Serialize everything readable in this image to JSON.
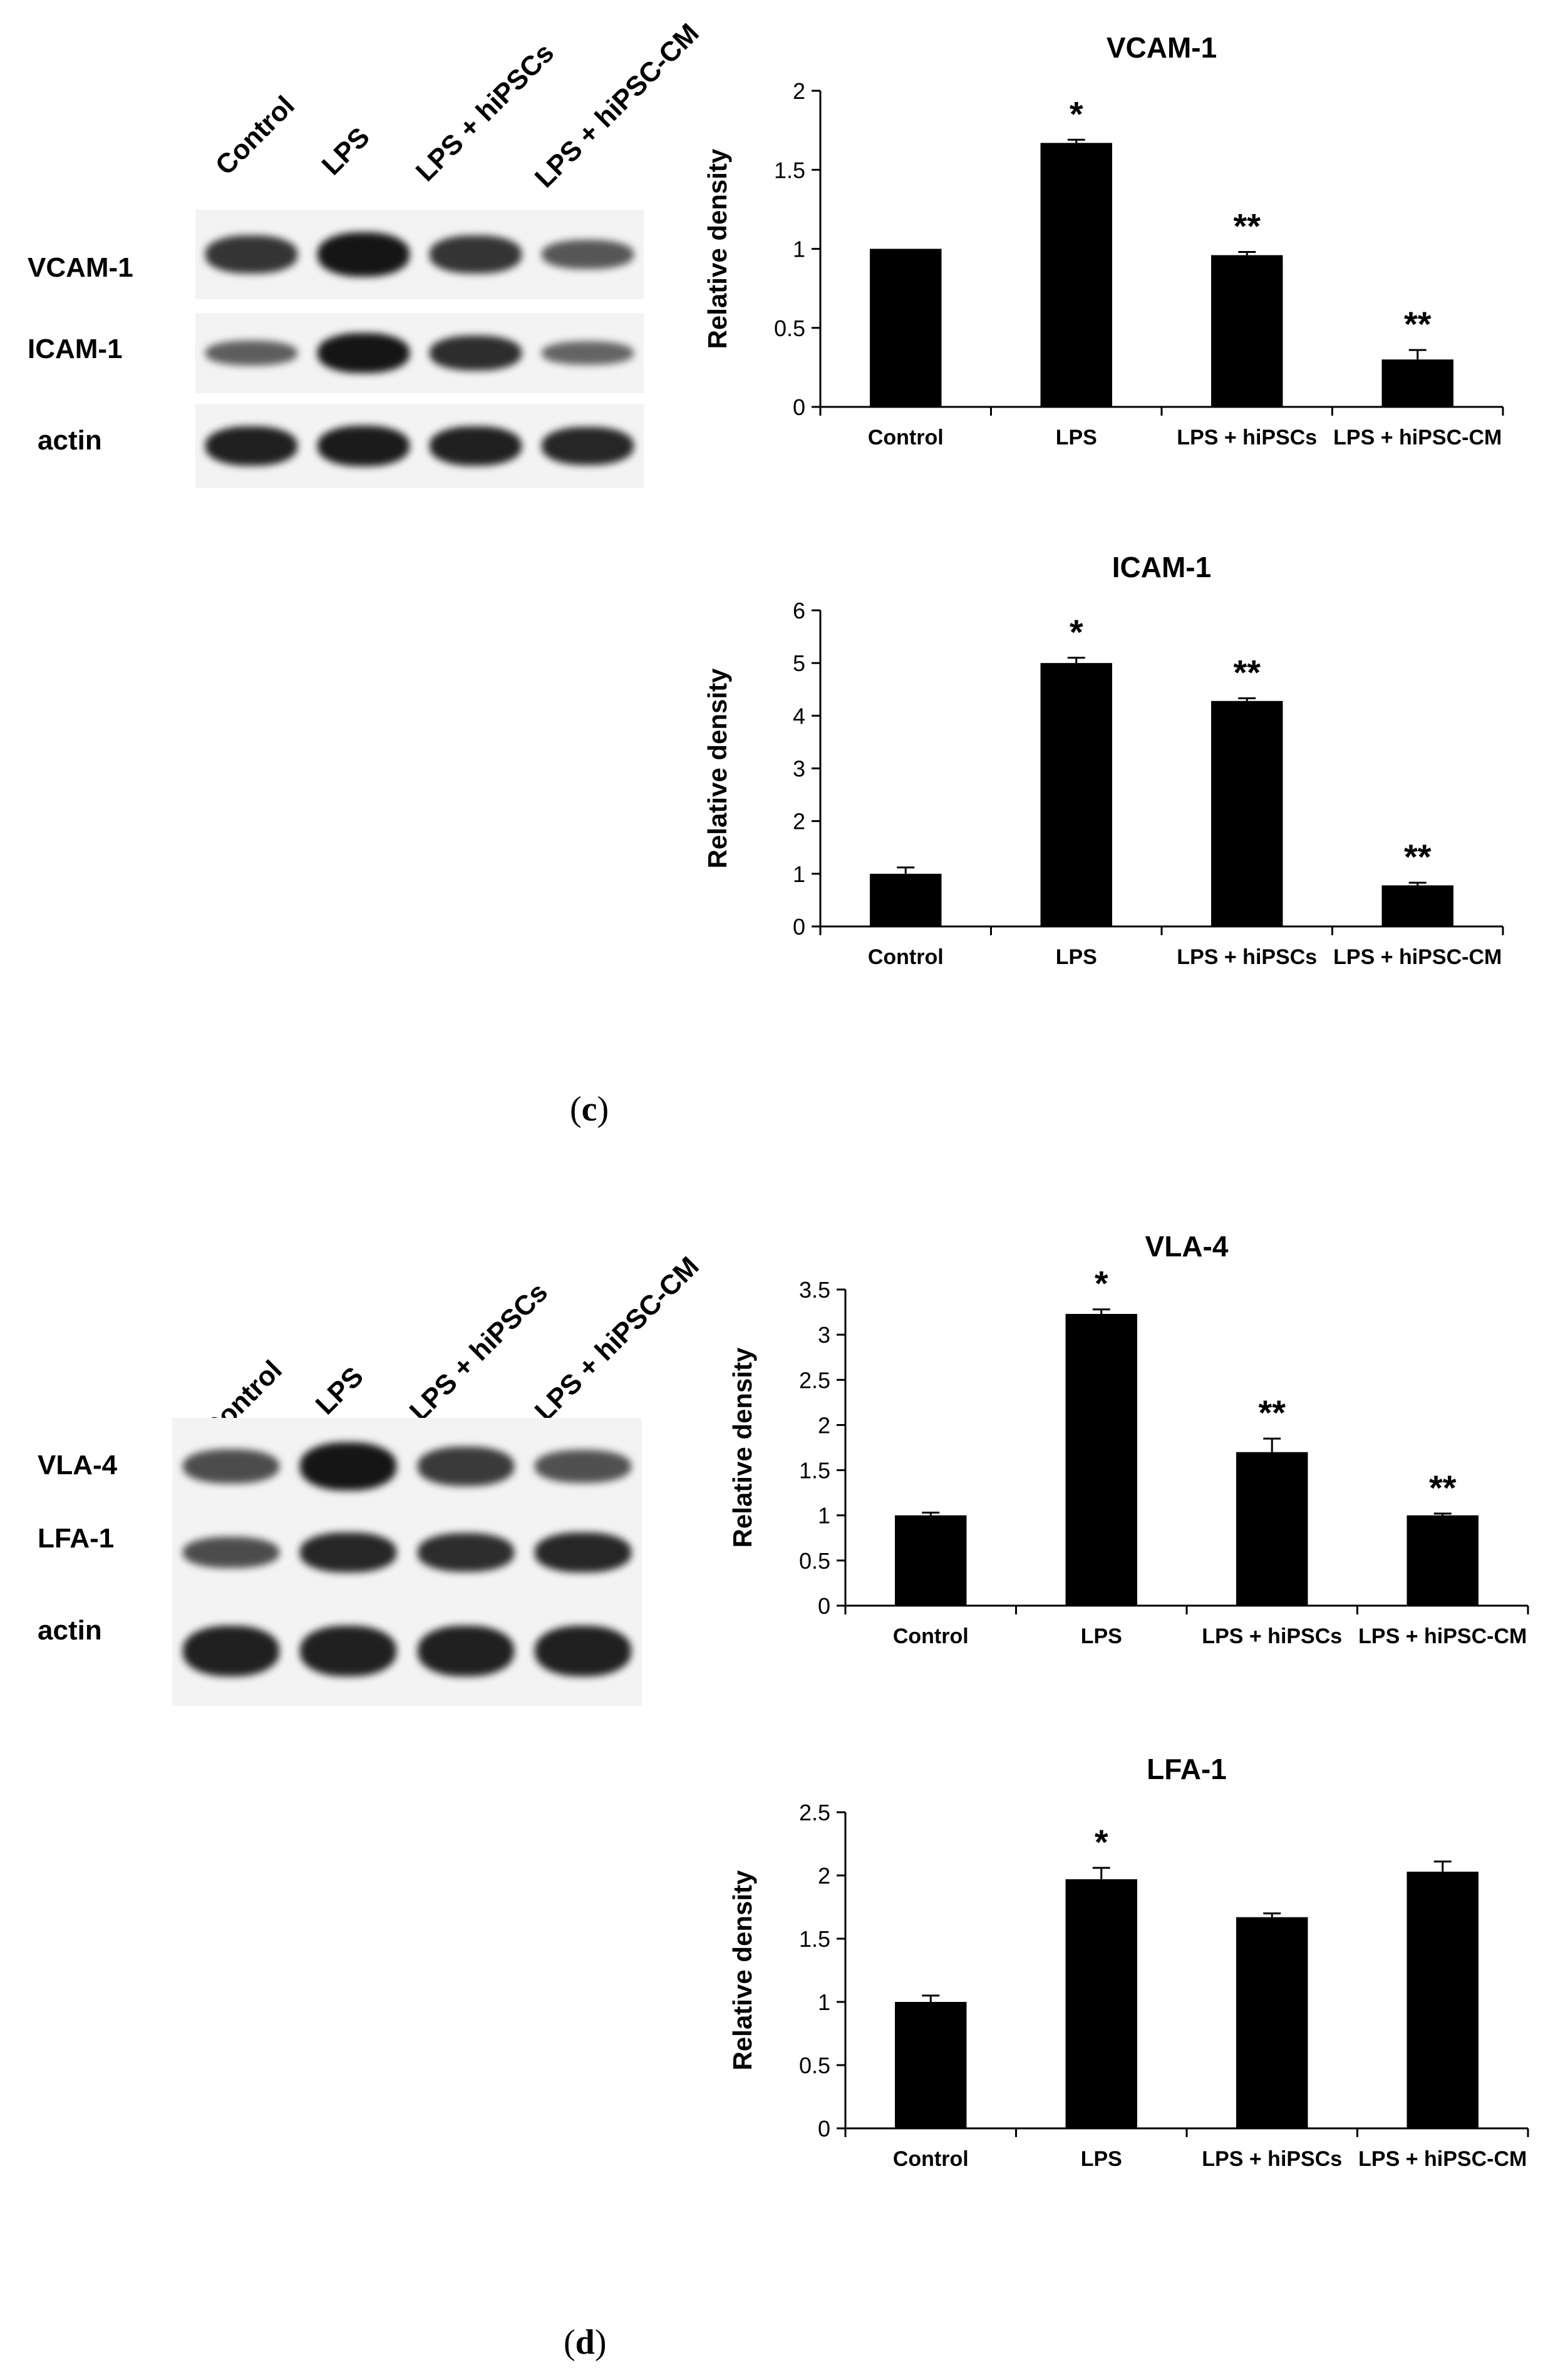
{
  "panels": [
    {
      "letter": "c",
      "blot": {
        "lanes": [
          "Control",
          "LPS",
          "LPS + hiPSCs",
          "LPS + hiPSC-CM"
        ],
        "rows": [
          {
            "label": "VCAM-1",
            "intensity": [
              0.75,
              1.0,
              0.75,
              0.45
            ]
          },
          {
            "label": "ICAM-1",
            "intensity": [
              0.4,
              1.0,
              0.8,
              0.35
            ]
          },
          {
            "label": "actin",
            "intensity": [
              0.9,
              0.95,
              0.9,
              0.85
            ]
          }
        ]
      },
      "charts": [
        {
          "type": "bar",
          "title": "VCAM-1",
          "ylabel": "Relative density",
          "categories": [
            "Control",
            "LPS",
            "LPS + hiPSCs",
            "LPS + hiPSC-CM"
          ],
          "values": [
            1.0,
            1.67,
            0.96,
            0.3
          ],
          "errors": [
            0,
            0.02,
            0.02,
            0.06
          ],
          "annotations": [
            "",
            "*",
            "**",
            "**"
          ],
          "ylim": [
            0,
            2
          ],
          "yticks": [
            "0",
            "0.5",
            "1",
            "1.5",
            "2"
          ]
        },
        {
          "type": "bar",
          "title": "ICAM-1",
          "ylabel": "Relative density",
          "categories": [
            "Control",
            "LPS",
            "LPS + hiPSCs",
            "LPS + hiPSC-CM"
          ],
          "values": [
            1.0,
            5.0,
            4.28,
            0.78
          ],
          "errors": [
            0.12,
            0.1,
            0.05,
            0.05
          ],
          "annotations": [
            "",
            "*",
            "**",
            "**"
          ],
          "ylim": [
            0,
            6
          ],
          "yticks": [
            "0",
            "1",
            "2",
            "3",
            "4",
            "5",
            "6"
          ]
        }
      ]
    },
    {
      "letter": "d",
      "blot": {
        "lanes": [
          "Control",
          "LPS",
          "LPS + hiPSCs",
          "LPS + hiPSC-CM"
        ],
        "rows": [
          {
            "label": "VLA-4",
            "intensity": [
              0.55,
              1.0,
              0.7,
              0.5
            ]
          },
          {
            "label": "LFA-1",
            "intensity": [
              0.55,
              0.85,
              0.8,
              0.85
            ]
          },
          {
            "label": "actin",
            "intensity": [
              0.9,
              0.9,
              0.9,
              0.9
            ]
          }
        ]
      },
      "charts": [
        {
          "type": "bar",
          "title": "VLA-4",
          "ylabel": "Relative density",
          "categories": [
            "Control",
            "LPS",
            "LPS + hiPSCs",
            "LPS + hiPSC-CM"
          ],
          "values": [
            1.0,
            3.23,
            1.7,
            1.0
          ],
          "errors": [
            0.03,
            0.05,
            0.15,
            0.02
          ],
          "annotations": [
            "",
            "*",
            "**",
            "**"
          ],
          "ylim": [
            0,
            3.5
          ],
          "yticks": [
            "0",
            "0.5",
            "1",
            "1.5",
            "2",
            "2.5",
            "3",
            "3.5"
          ]
        },
        {
          "type": "bar",
          "title": "LFA-1",
          "ylabel": "Relative density",
          "categories": [
            "Control",
            "LPS",
            "LPS + hiPSCs",
            "LPS + hiPSC-CM"
          ],
          "values": [
            1.0,
            1.97,
            1.67,
            2.03
          ],
          "errors": [
            0.05,
            0.09,
            0.03,
            0.08
          ],
          "annotations": [
            "",
            "*",
            "",
            ""
          ],
          "ylim": [
            0,
            2.5
          ],
          "yticks": [
            "0",
            "0.5",
            "1",
            "1.5",
            "2",
            "2.5"
          ]
        }
      ]
    }
  ],
  "chart_data": [
    {
      "type": "bar",
      "title": "VCAM-1",
      "ylabel": "Relative density",
      "categories": [
        "Control",
        "LPS",
        "LPS + hiPSCs",
        "LPS + hiPSC-CM"
      ],
      "values": [
        1.0,
        1.67,
        0.96,
        0.3
      ],
      "errors": [
        0,
        0.02,
        0.02,
        0.06
      ],
      "annotations": [
        "",
        "*",
        "**",
        "**"
      ],
      "ylim": [
        0,
        2
      ]
    },
    {
      "type": "bar",
      "title": "ICAM-1",
      "ylabel": "Relative density",
      "categories": [
        "Control",
        "LPS",
        "LPS + hiPSCs",
        "LPS + hiPSC-CM"
      ],
      "values": [
        1.0,
        5.0,
        4.28,
        0.78
      ],
      "errors": [
        0.12,
        0.1,
        0.05,
        0.05
      ],
      "annotations": [
        "",
        "*",
        "**",
        "**"
      ],
      "ylim": [
        0,
        6
      ]
    },
    {
      "type": "bar",
      "title": "VLA-4",
      "ylabel": "Relative density",
      "categories": [
        "Control",
        "LPS",
        "LPS + hiPSCs",
        "LPS + hiPSC-CM"
      ],
      "values": [
        1.0,
        3.23,
        1.7,
        1.0
      ],
      "errors": [
        0.03,
        0.05,
        0.15,
        0.02
      ],
      "annotations": [
        "",
        "*",
        "**",
        "**"
      ],
      "ylim": [
        0,
        3.5
      ]
    },
    {
      "type": "bar",
      "title": "LFA-1",
      "ylabel": "Relative density",
      "categories": [
        "Control",
        "LPS",
        "LPS + hiPSCs",
        "LPS + hiPSC-CM"
      ],
      "values": [
        1.0,
        1.97,
        1.67,
        2.03
      ],
      "errors": [
        0.05,
        0.09,
        0.03,
        0.08
      ],
      "annotations": [
        "",
        "*",
        "",
        ""
      ],
      "ylim": [
        0,
        2.5
      ]
    }
  ]
}
